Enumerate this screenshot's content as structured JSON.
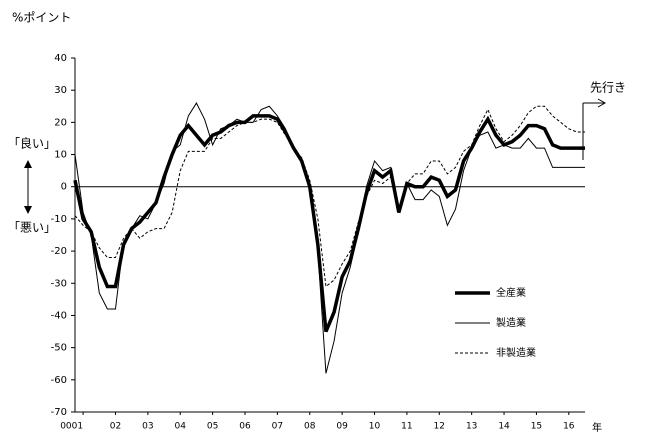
{
  "chart_data": {
    "type": "line",
    "y_label": "%ポイント",
    "x_unit": "年",
    "forecast_label": "先行き",
    "good_label": "「良い」",
    "bad_label": "「悪い」",
    "x": [
      2000.75,
      2001,
      2001.25,
      2001.5,
      2001.75,
      2002,
      2002.25,
      2002.5,
      2002.75,
      2003,
      2003.25,
      2003.5,
      2003.75,
      2004,
      2004.25,
      2004.5,
      2004.75,
      2005,
      2005.25,
      2005.5,
      2005.75,
      2006,
      2006.25,
      2006.5,
      2006.75,
      2007,
      2007.25,
      2007.5,
      2007.75,
      2008,
      2008.25,
      2008.5,
      2008.75,
      2009,
      2009.25,
      2009.5,
      2009.75,
      2010,
      2010.25,
      2010.5,
      2010.75,
      2011,
      2011.25,
      2011.5,
      2011.75,
      2012,
      2012.25,
      2012.5,
      2012.75,
      2013,
      2013.25,
      2013.5,
      2013.75,
      2014,
      2014.25,
      2014.5,
      2014.75,
      2015,
      2015.25,
      2015.5,
      2015.75,
      2016,
      2016.25,
      2016.5
    ],
    "series": [
      {
        "name": "全産業",
        "color": "#000000",
        "width": 3.5,
        "dash": "none",
        "values": [
          2,
          -10,
          -14,
          -25,
          -31,
          -31,
          -18,
          -13,
          -11,
          -8,
          -5,
          3,
          10,
          16,
          19,
          16,
          13,
          16,
          17,
          19,
          20,
          20,
          22,
          22,
          22,
          21,
          17,
          12,
          8,
          0,
          -18,
          -45,
          -39,
          -28,
          -23,
          -13,
          -2,
          5,
          3,
          5,
          -8,
          1,
          0,
          0,
          3,
          2,
          -3,
          -1,
          8,
          12,
          17,
          21,
          16,
          13,
          14,
          16,
          19,
          19,
          18,
          13,
          12,
          12,
          12,
          12
        ]
      },
      {
        "name": "製造業",
        "color": "#000000",
        "width": 1,
        "dash": "none",
        "values": [
          10,
          -8,
          -15,
          -33,
          -38,
          -38,
          -17,
          -13,
          -9,
          -10,
          -5,
          1,
          11,
          13,
          22,
          26,
          21,
          13,
          18,
          19,
          21,
          20,
          20,
          24,
          25,
          22,
          18,
          12,
          8,
          0,
          -20,
          -58,
          -48,
          -33,
          -25,
          -14,
          0,
          8,
          5,
          6,
          -7,
          1,
          -4,
          -4,
          -1,
          -3,
          -12,
          -7,
          5,
          12,
          16,
          17,
          12,
          13,
          12,
          12,
          15,
          12,
          12,
          6,
          6,
          6,
          6,
          6
        ]
      },
      {
        "name": "非製造業",
        "color": "#000000",
        "width": 1,
        "dash": "3,2",
        "values": [
          -9,
          -12,
          -14,
          -19,
          -22,
          -22,
          -16,
          -13,
          -16,
          -14,
          -13,
          -13,
          -8,
          5,
          11,
          11,
          11,
          15,
          15,
          17,
          19,
          20,
          20,
          21,
          21,
          20,
          16,
          12,
          9,
          2,
          -10,
          -31,
          -29,
          -24,
          -20,
          -11,
          -3,
          2,
          1,
          3,
          -8,
          1,
          4,
          4,
          8,
          8,
          4,
          6,
          11,
          13,
          19,
          24,
          18,
          14,
          16,
          19,
          23,
          25,
          25,
          22,
          20,
          18,
          17,
          17
        ]
      }
    ],
    "xlim": [
      2000.75,
      2016.5
    ],
    "xticks": [
      {
        "value": 2001,
        "label": "0001"
      },
      {
        "value": 2002,
        "label": "02"
      },
      {
        "value": 2003,
        "label": "03"
      },
      {
        "value": 2004,
        "label": "04"
      },
      {
        "value": 2005,
        "label": "05"
      },
      {
        "value": 2006,
        "label": "06"
      },
      {
        "value": 2007,
        "label": "07"
      },
      {
        "value": 2008,
        "label": "08"
      },
      {
        "value": 2009,
        "label": "09"
      },
      {
        "value": 2010,
        "label": "10"
      },
      {
        "value": 2011,
        "label": "11"
      },
      {
        "value": 2012,
        "label": "12"
      },
      {
        "value": 2013,
        "label": "13"
      },
      {
        "value": 2014,
        "label": "14"
      },
      {
        "value": 2015,
        "label": "15"
      },
      {
        "value": 2016,
        "label": "16"
      }
    ],
    "ylim": [
      -70,
      40
    ],
    "yticks": [
      -70,
      -60,
      -50,
      -40,
      -30,
      -20,
      -10,
      0,
      10,
      20,
      30,
      40
    ]
  }
}
